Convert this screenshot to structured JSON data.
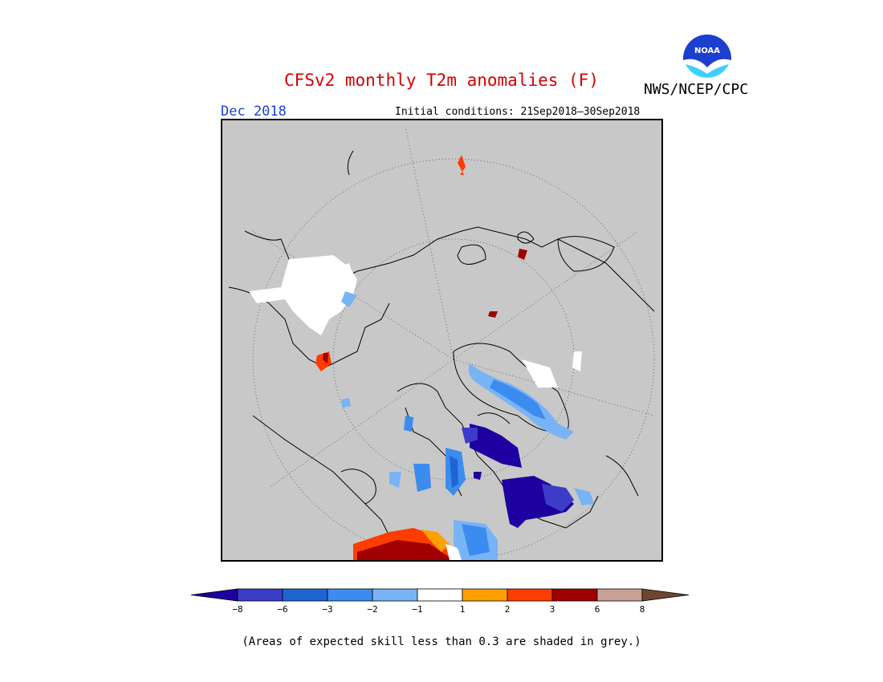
{
  "header": {
    "title": "CFSv2 monthly T2m anomalies (F)",
    "agency": "NWS/NCEP/CPC",
    "logo_text": "NOAA",
    "month": "Dec 2018",
    "initial_conditions": "Initial conditions: 21Sep2018–30Sep2018"
  },
  "map": {
    "projection": "north-polar-stereographic",
    "background_color": "#c8c8c8",
    "grid": "dotted"
  },
  "colorbar": {
    "tick_labels": [
      "−8",
      "−6",
      "−3",
      "−2",
      "−1",
      "1",
      "2",
      "3",
      "6",
      "8"
    ],
    "bins": [
      {
        "range": "< -8",
        "color": "#1e00a0"
      },
      {
        "range": "-8 to -6",
        "color": "#3c3cc8"
      },
      {
        "range": "-6 to -3",
        "color": "#1e64d2"
      },
      {
        "range": "-3 to -2",
        "color": "#3c8cf0"
      },
      {
        "range": "-2 to -1",
        "color": "#78b4f5"
      },
      {
        "range": "-1 to 1",
        "color": "#ffffff"
      },
      {
        "range": "1 to 2",
        "color": "#ffa000"
      },
      {
        "range": "2 to 3",
        "color": "#ff3c00"
      },
      {
        "range": "3 to 6",
        "color": "#a00000"
      },
      {
        "range": "6 to 8",
        "color": "#c8a096"
      },
      {
        "range": "> 8",
        "color": "#6e4632"
      }
    ]
  },
  "footnote": "(Areas of expected skill less than 0.3 are shaded in grey.)"
}
